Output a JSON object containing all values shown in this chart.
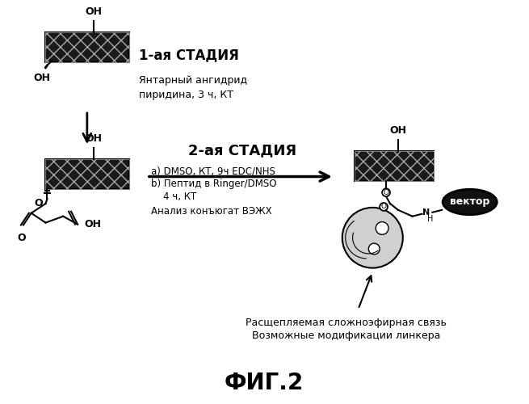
{
  "title": "ФИГ.2",
  "stage1_label": "1-ая СТАДИЯ",
  "stage2_label": "2-ая СТАДИЯ",
  "stage1_reagents": "Янтарный ангидрид\nпиридина, 3 ч, КТ",
  "stage2_line_a": "a) DMSO, КТ, 9ч EDC/NHS",
  "stage2_line_b": "b) Пептид в Ringer/DMSO",
  "stage2_line_c": "    4 ч, КТ",
  "stage2_line_d": "Анализ конъюгат ВЭЖХ",
  "arrow_label1": "Расщепляемая сложноэфирная связь",
  "arrow_label2": "Возможные модификации линкера",
  "vector_label": "вектор",
  "bg_color": "#ffffff"
}
